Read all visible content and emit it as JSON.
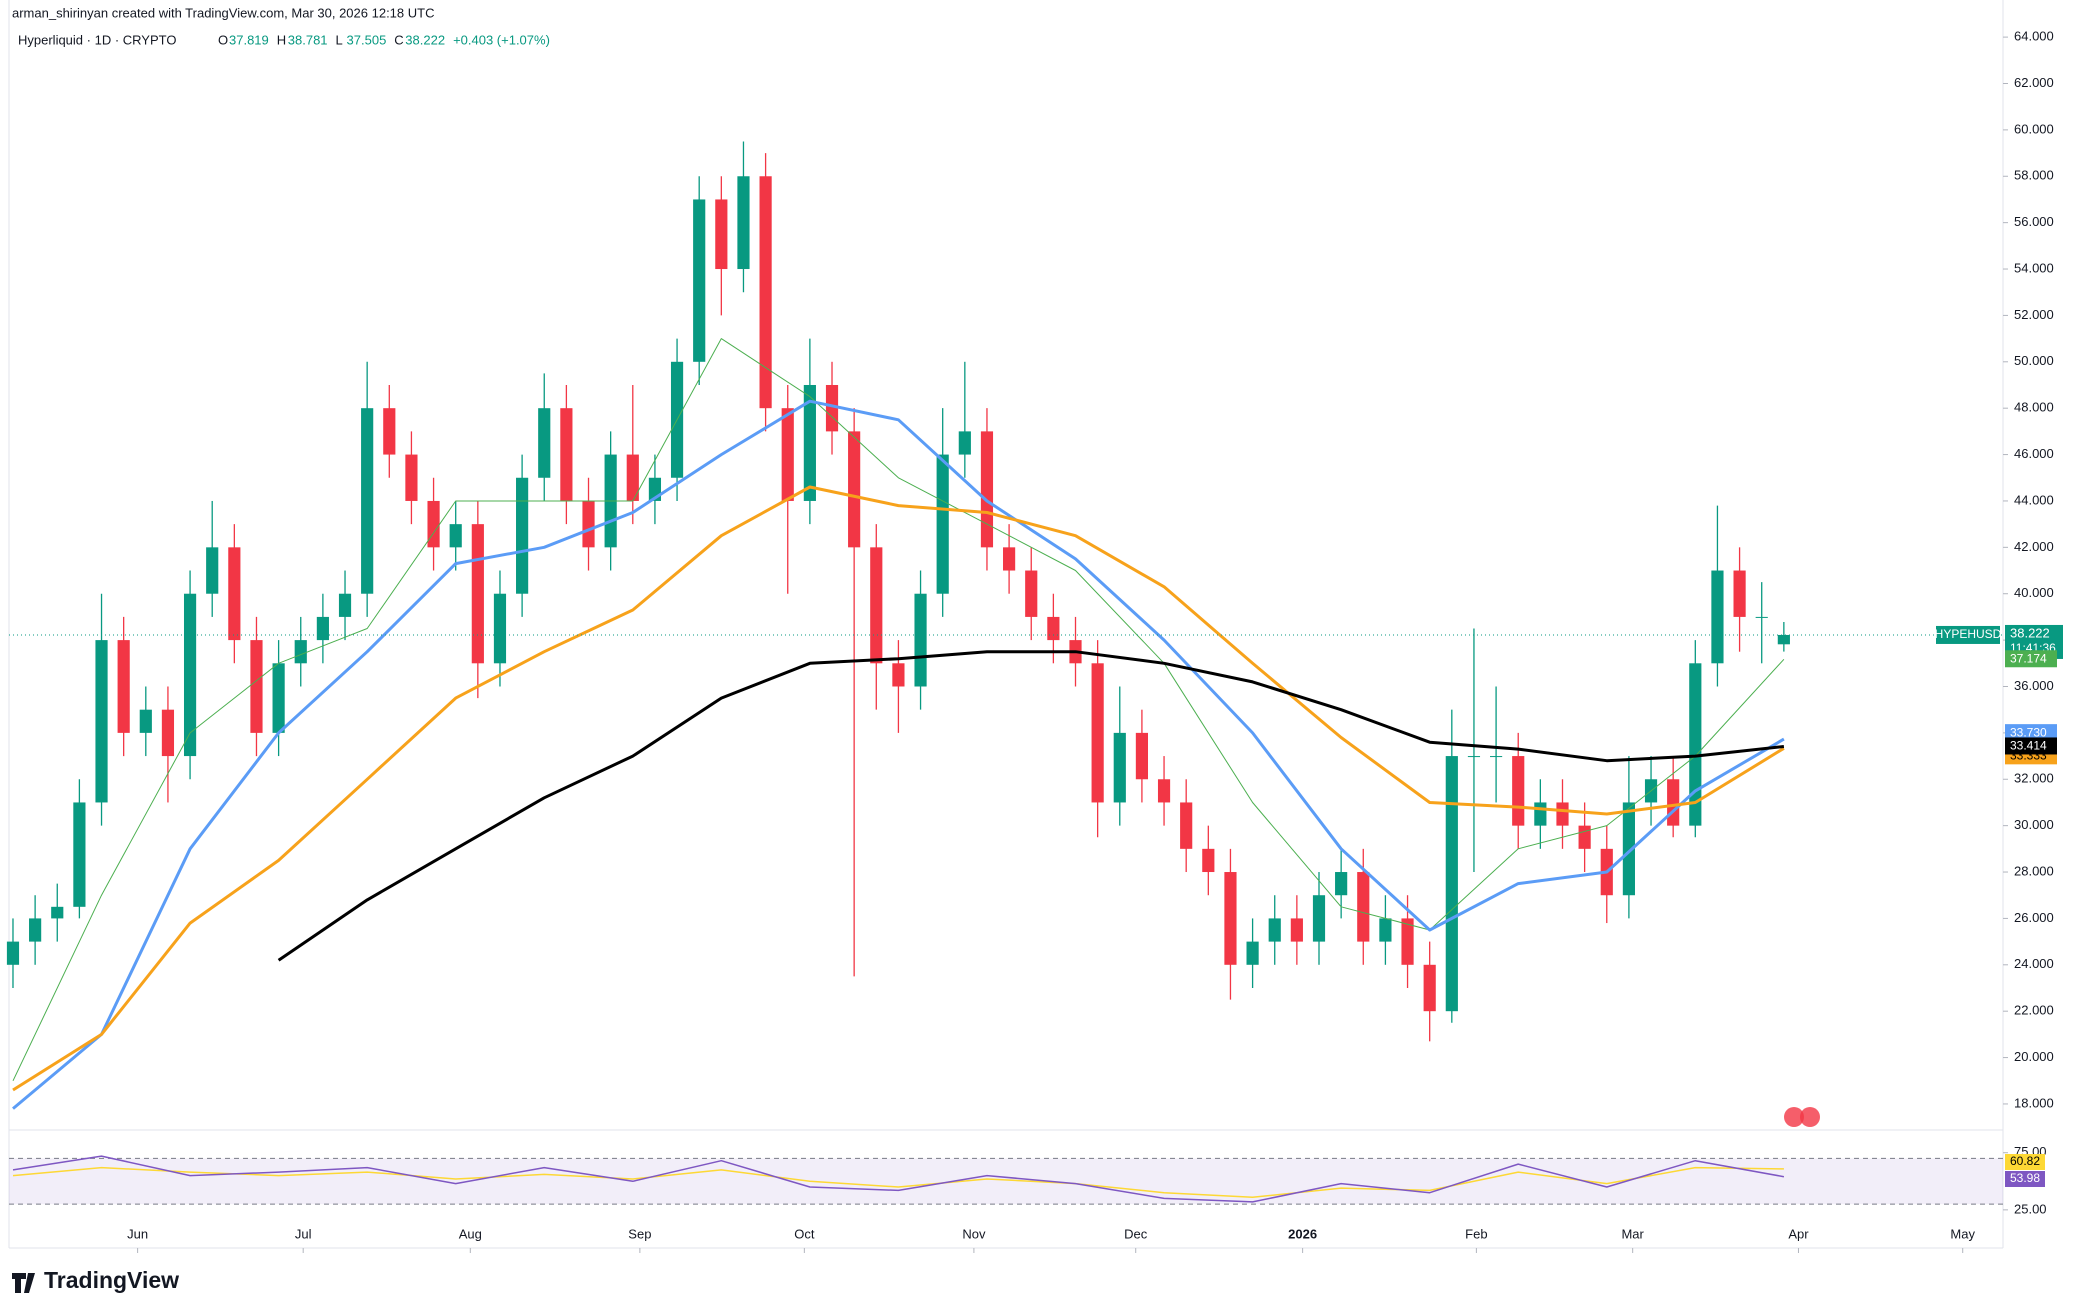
{
  "header": {
    "attribution": "arman_shirinyan created with TradingView.com, Mar 30, 2026 12:18 UTC",
    "symbol": "Hyperliquid · 1D · CRYPTO",
    "ohlc_letters": [
      "O",
      "H",
      "L",
      "C"
    ],
    "change": "+0.403 (+1.07%)"
  },
  "footer": {
    "logo": "TradingView"
  },
  "chart_data": [
    {
      "type": "candlestick",
      "ticker": "HYPEHUSD",
      "countdown": "11:41:36",
      "up_color": "#089981",
      "down_color": "#f23645",
      "categories": [
        null,
        null,
        null,
        null,
        null,
        null,
        null,
        null,
        null,
        null,
        null,
        null,
        null,
        null,
        null,
        null,
        null,
        null,
        null,
        null,
        null,
        null,
        null,
        null,
        null,
        null,
        null,
        null,
        null,
        null,
        null,
        null,
        null,
        null,
        null,
        null,
        null,
        null,
        null,
        null,
        null,
        null,
        null,
        null,
        null,
        null,
        null,
        null,
        null,
        null,
        null,
        null,
        null,
        null,
        null,
        null,
        null,
        null,
        null,
        null,
        null,
        null,
        null,
        null,
        null,
        null,
        null,
        null,
        null,
        null,
        null,
        null,
        null,
        null,
        null,
        null,
        null,
        null,
        null,
        null,
        null
      ],
      "open": [
        24,
        25,
        26,
        26.5,
        31,
        38,
        34,
        35,
        33,
        40,
        42,
        38,
        34,
        37,
        38,
        39,
        40,
        48,
        46,
        44,
        42,
        43,
        37,
        40,
        45,
        48,
        44,
        42,
        46,
        44,
        45,
        50,
        57,
        54,
        58,
        48,
        44,
        49,
        47,
        42,
        37,
        36,
        40,
        46,
        47,
        42,
        41,
        39,
        38,
        37,
        31,
        34,
        32,
        31,
        29,
        28,
        24,
        25,
        26,
        25,
        27,
        28,
        25,
        26,
        24,
        22,
        33,
        33,
        33,
        30,
        31,
        30,
        29,
        27,
        31,
        32,
        30,
        37,
        41,
        39,
        37.819
      ],
      "high": [
        26,
        27,
        27.5,
        32,
        40,
        39,
        36,
        36,
        41,
        44,
        43,
        39,
        38,
        39,
        40,
        41,
        50,
        49,
        47,
        45,
        44,
        44,
        41,
        46,
        49.5,
        49,
        45,
        47,
        49,
        46,
        51,
        58,
        58,
        59.5,
        59,
        49,
        51,
        50,
        48,
        43,
        38,
        41,
        48,
        50,
        48,
        43,
        42,
        40,
        39,
        38,
        36,
        35,
        33,
        32,
        30,
        29,
        26,
        27,
        27,
        28,
        29,
        29,
        27,
        27,
        25,
        35,
        38.5,
        36,
        34,
        32,
        32,
        31,
        30,
        33,
        33,
        33,
        38,
        43.8,
        42,
        40.5,
        38.781
      ],
      "low": [
        23,
        24,
        25,
        26,
        30,
        33,
        33,
        31,
        32,
        39,
        37,
        33,
        33,
        36,
        37,
        38,
        39,
        45,
        43,
        41,
        41,
        35.5,
        36,
        39,
        44,
        43,
        41,
        41,
        43,
        43,
        44,
        49,
        52,
        53,
        47,
        40,
        43,
        46,
        23.5,
        35,
        34,
        35,
        39,
        45,
        41,
        40,
        38,
        37,
        36,
        29.5,
        30,
        31,
        30,
        28,
        27,
        22.5,
        23,
        24,
        24,
        24,
        26,
        24,
        24,
        23,
        20.7,
        21.5,
        28,
        31,
        29,
        29,
        29,
        28,
        25.8,
        26,
        30,
        29.5,
        29.5,
        36,
        37.5,
        37,
        37.505
      ],
      "close": [
        25,
        26,
        26.5,
        31,
        38,
        34,
        35,
        33,
        40,
        42,
        38,
        34,
        37,
        38,
        39,
        40,
        48,
        46,
        44,
        42,
        43,
        37,
        40,
        45,
        48,
        44,
        42,
        46,
        44,
        45,
        50,
        57,
        54,
        58,
        48,
        44,
        49,
        47,
        42,
        37,
        36,
        40,
        46,
        47,
        42,
        41,
        39,
        38,
        37,
        31,
        34,
        32,
        31,
        29,
        28,
        24,
        25,
        26,
        25,
        27,
        28,
        25,
        26,
        24,
        22,
        33,
        33,
        33,
        30,
        31,
        30,
        29,
        27,
        31,
        32,
        30,
        37,
        41,
        39,
        39,
        38.222
      ],
      "x": [
        0,
        4,
        8,
        12,
        16,
        20,
        24,
        28,
        32,
        36,
        40,
        44,
        48,
        52,
        56,
        60,
        64,
        68,
        72,
        76,
        80
      ],
      "series": [
        {
          "color": "#4caf50",
          "values": [
            19,
            27,
            34,
            37,
            38.5,
            44,
            44,
            44,
            51,
            48.5,
            45,
            43,
            41,
            37,
            31,
            26.5,
            25.5,
            29,
            30,
            33,
            37.174
          ],
          "value_labels": [
            null,
            null,
            null,
            null,
            null,
            null,
            null,
            null,
            null,
            null,
            null,
            null,
            null,
            null,
            null,
            null,
            null,
            null,
            null,
            null,
            "37.174"
          ]
        },
        {
          "color": "#5b9cf6",
          "values": [
            17.8,
            21,
            29,
            34,
            37.5,
            41.3,
            42,
            43.5,
            46,
            48.3,
            47.5,
            44,
            41.5,
            38,
            34,
            29,
            25.5,
            27.5,
            28,
            31.5,
            33.73
          ],
          "value_labels": [
            null,
            null,
            null,
            null,
            null,
            null,
            null,
            null,
            null,
            null,
            null,
            null,
            null,
            null,
            null,
            null,
            null,
            null,
            null,
            null,
            "33.730"
          ]
        },
        {
          "color": "#f7a21b",
          "values": [
            18.6,
            21,
            25.8,
            28.5,
            32,
            35.5,
            37.5,
            39.3,
            42.5,
            44.6,
            43.8,
            43.5,
            42.5,
            40.3,
            37,
            33.8,
            31,
            30.8,
            30.5,
            31,
            33.333
          ],
          "value_labels": [
            null,
            null,
            null,
            null,
            null,
            null,
            null,
            null,
            null,
            null,
            null,
            null,
            null,
            null,
            null,
            null,
            null,
            null,
            null,
            null,
            "33.333"
          ]
        },
        {
          "color": "#000000",
          "values": [
            null,
            null,
            null,
            24.2,
            26.8,
            29,
            31.2,
            33,
            35.5,
            37,
            37.2,
            37.5,
            37.5,
            37,
            36.2,
            35,
            33.6,
            33.3,
            32.8,
            33,
            33.414
          ],
          "value_labels": [
            null,
            null,
            null,
            null,
            null,
            null,
            null,
            null,
            null,
            null,
            null,
            null,
            null,
            null,
            null,
            null,
            null,
            null,
            null,
            null,
            "33.414"
          ]
        }
      ],
      "xlim": [
        -0.18,
        89.9
      ],
      "xticks": [
        {
          "value": 5.63,
          "label": "Jun"
        },
        {
          "value": 13.11,
          "label": "Jul"
        },
        {
          "value": 20.66,
          "label": "Aug"
        },
        {
          "value": 28.32,
          "label": "Sep"
        },
        {
          "value": 35.75,
          "label": "Oct"
        },
        {
          "value": 43.41,
          "label": "Nov"
        },
        {
          "value": 50.72,
          "label": "Dec"
        },
        {
          "value": 58.26,
          "label": "2026"
        },
        {
          "value": 66.11,
          "label": "Feb"
        },
        {
          "value": 73.17,
          "label": "Mar"
        },
        {
          "value": 80.66,
          "label": "Apr"
        },
        {
          "value": 88.08,
          "label": "May"
        }
      ],
      "ylim": [
        16.92,
        65.6
      ],
      "yticks": [
        {
          "value": 18,
          "label": "18.000"
        },
        {
          "value": 20,
          "label": "20.000"
        },
        {
          "value": 22,
          "label": "22.000"
        },
        {
          "value": 24,
          "label": "24.000"
        },
        {
          "value": 26,
          "label": "26.000"
        },
        {
          "value": 28,
          "label": "28.000"
        },
        {
          "value": 30,
          "label": "30.000"
        },
        {
          "value": 32,
          "label": "32.000"
        },
        {
          "value": 34,
          "label": "34.000"
        },
        {
          "value": 36,
          "label": "36.000"
        },
        {
          "value": 38,
          "label": "38.000"
        },
        {
          "value": 40,
          "label": "40.000"
        },
        {
          "value": 42,
          "label": "42.000"
        },
        {
          "value": 44,
          "label": "44.000"
        },
        {
          "value": 46,
          "label": "46.000"
        },
        {
          "value": 48,
          "label": "48.000"
        },
        {
          "value": 50,
          "label": "50.000"
        },
        {
          "value": 52,
          "label": "52.000"
        },
        {
          "value": 54,
          "label": "54.000"
        },
        {
          "value": 56,
          "label": "56.000"
        },
        {
          "value": 58,
          "label": "58.000"
        },
        {
          "value": 60,
          "label": "60.000"
        },
        {
          "value": 62,
          "label": "62.000"
        },
        {
          "value": 64,
          "label": "64.000"
        }
      ]
    },
    {
      "type": "line",
      "band": [
        30,
        70
      ],
      "x": [
        0,
        4,
        8,
        12,
        16,
        20,
        24,
        28,
        32,
        36,
        40,
        44,
        48,
        52,
        56,
        60,
        64,
        68,
        72,
        76,
        80
      ],
      "series": [
        {
          "color": "#fdd835",
          "values": [
            55,
            62,
            58,
            55,
            58,
            52,
            56,
            52,
            60,
            50,
            45,
            52,
            48,
            40,
            36,
            44,
            42,
            58,
            48,
            62,
            60.82
          ]
        },
        {
          "color": "#7e57c2",
          "values": [
            60,
            72,
            55,
            58,
            62,
            48,
            62,
            50,
            68,
            45,
            42,
            55,
            48,
            35,
            32,
            48,
            40,
            65,
            45,
            68,
            53.98
          ]
        }
      ],
      "xlim": [
        -0.18,
        89.9
      ],
      "ylim": [
        17,
        94
      ],
      "yticks": [
        {
          "value": 25,
          "label": "25.00"
        },
        {
          "value": 75,
          "label": "75.00"
        }
      ]
    }
  ]
}
